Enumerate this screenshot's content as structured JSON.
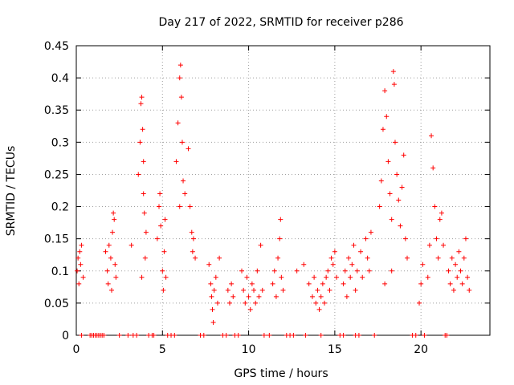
{
  "chart_data": {
    "type": "scatter",
    "title": "Day 217 of 2022, SRMTID for receiver p286",
    "xlabel": "GPS time / hours",
    "ylabel": "SRMTID / TECUs",
    "xlim": [
      0,
      24
    ],
    "ylim": [
      0,
      0.45
    ],
    "xticks": [
      0,
      5,
      10,
      15,
      20
    ],
    "xtick_labels": [
      "0",
      "5",
      "10",
      "15",
      "20"
    ],
    "yticks": [
      0,
      0.05,
      0.1,
      0.15,
      0.2,
      0.25,
      0.3,
      0.35,
      0.4,
      0.45
    ],
    "ytick_labels": [
      "0",
      "0.05",
      "0.1",
      "0.15",
      "0.2",
      "0.25",
      "0.3",
      "0.35",
      "0.4",
      "0.45"
    ],
    "grid": true,
    "marker": "+",
    "color": "#ff0000",
    "series": [
      {
        "name": "SRMTID",
        "points": [
          [
            0.05,
            0.1
          ],
          [
            0.1,
            0.12
          ],
          [
            0.15,
            0.08
          ],
          [
            0.2,
            0.13
          ],
          [
            0.25,
            0.11
          ],
          [
            0.3,
            0.14
          ],
          [
            0.4,
            0.09
          ],
          [
            1.7,
            0.13
          ],
          [
            1.8,
            0.1
          ],
          [
            1.85,
            0.08
          ],
          [
            1.9,
            0.14
          ],
          [
            2.0,
            0.12
          ],
          [
            2.05,
            0.07
          ],
          [
            2.1,
            0.16
          ],
          [
            2.15,
            0.19
          ],
          [
            2.2,
            0.18
          ],
          [
            2.25,
            0.11
          ],
          [
            2.3,
            0.09
          ],
          [
            3.2,
            0.14
          ],
          [
            3.6,
            0.25
          ],
          [
            3.7,
            0.3
          ],
          [
            3.75,
            0.36
          ],
          [
            3.8,
            0.37
          ],
          [
            3.85,
            0.32
          ],
          [
            3.9,
            0.22
          ],
          [
            3.95,
            0.19
          ],
          [
            4.0,
            0.12
          ],
          [
            4.05,
            0.16
          ],
          [
            3.8,
            0.09
          ],
          [
            3.9,
            0.27
          ],
          [
            4.7,
            0.15
          ],
          [
            4.8,
            0.2
          ],
          [
            4.85,
            0.22
          ],
          [
            4.9,
            0.17
          ],
          [
            5.0,
            0.1
          ],
          [
            5.05,
            0.07
          ],
          [
            5.1,
            0.13
          ],
          [
            5.15,
            0.18
          ],
          [
            5.2,
            0.09
          ],
          [
            5.8,
            0.27
          ],
          [
            5.9,
            0.33
          ],
          [
            6.0,
            0.4
          ],
          [
            6.05,
            0.42
          ],
          [
            6.1,
            0.37
          ],
          [
            6.15,
            0.3
          ],
          [
            6.0,
            0.2
          ],
          [
            6.2,
            0.24
          ],
          [
            6.3,
            0.22
          ],
          [
            6.5,
            0.29
          ],
          [
            6.6,
            0.2
          ],
          [
            6.7,
            0.16
          ],
          [
            6.75,
            0.13
          ],
          [
            6.8,
            0.15
          ],
          [
            6.9,
            0.12
          ],
          [
            7.7,
            0.11
          ],
          [
            7.8,
            0.08
          ],
          [
            7.85,
            0.06
          ],
          [
            7.9,
            0.04
          ],
          [
            7.95,
            0.02
          ],
          [
            8.0,
            0.07
          ],
          [
            8.1,
            0.09
          ],
          [
            8.2,
            0.05
          ],
          [
            8.3,
            0.12
          ],
          [
            8.8,
            0.07
          ],
          [
            8.9,
            0.05
          ],
          [
            9.0,
            0.08
          ],
          [
            9.1,
            0.06
          ],
          [
            9.6,
            0.1
          ],
          [
            9.7,
            0.07
          ],
          [
            9.8,
            0.05
          ],
          [
            9.9,
            0.09
          ],
          [
            10.0,
            0.06
          ],
          [
            10.1,
            0.04
          ],
          [
            10.2,
            0.08
          ],
          [
            10.3,
            0.07
          ],
          [
            10.4,
            0.05
          ],
          [
            10.5,
            0.1
          ],
          [
            10.6,
            0.06
          ],
          [
            10.7,
            0.14
          ],
          [
            10.8,
            0.07
          ],
          [
            11.4,
            0.08
          ],
          [
            11.5,
            0.1
          ],
          [
            11.6,
            0.06
          ],
          [
            11.7,
            0.12
          ],
          [
            11.8,
            0.15
          ],
          [
            11.85,
            0.18
          ],
          [
            11.9,
            0.09
          ],
          [
            12.0,
            0.07
          ],
          [
            12.8,
            0.1
          ],
          [
            13.2,
            0.11
          ],
          [
            13.5,
            0.08
          ],
          [
            13.7,
            0.06
          ],
          [
            13.8,
            0.09
          ],
          [
            13.9,
            0.05
          ],
          [
            14.0,
            0.07
          ],
          [
            14.1,
            0.04
          ],
          [
            14.2,
            0.06
          ],
          [
            14.3,
            0.08
          ],
          [
            14.4,
            0.05
          ],
          [
            14.5,
            0.09
          ],
          [
            14.6,
            0.1
          ],
          [
            14.7,
            0.07
          ],
          [
            14.8,
            0.12
          ],
          [
            14.9,
            0.11
          ],
          [
            15.0,
            0.13
          ],
          [
            15.1,
            0.09
          ],
          [
            15.5,
            0.08
          ],
          [
            15.6,
            0.1
          ],
          [
            15.7,
            0.06
          ],
          [
            15.8,
            0.12
          ],
          [
            15.9,
            0.09
          ],
          [
            16.0,
            0.11
          ],
          [
            16.1,
            0.14
          ],
          [
            16.2,
            0.07
          ],
          [
            16.3,
            0.1
          ],
          [
            16.5,
            0.13
          ],
          [
            16.6,
            0.09
          ],
          [
            16.8,
            0.15
          ],
          [
            16.9,
            0.12
          ],
          [
            17.0,
            0.1
          ],
          [
            17.1,
            0.16
          ],
          [
            17.6,
            0.2
          ],
          [
            17.7,
            0.24
          ],
          [
            17.8,
            0.32
          ],
          [
            17.9,
            0.38
          ],
          [
            18.0,
            0.34
          ],
          [
            18.1,
            0.27
          ],
          [
            18.2,
            0.22
          ],
          [
            18.3,
            0.18
          ],
          [
            18.4,
            0.41
          ],
          [
            18.45,
            0.39
          ],
          [
            18.5,
            0.3
          ],
          [
            18.6,
            0.25
          ],
          [
            18.7,
            0.21
          ],
          [
            18.8,
            0.17
          ],
          [
            18.9,
            0.23
          ],
          [
            19.0,
            0.28
          ],
          [
            19.1,
            0.15
          ],
          [
            19.2,
            0.12
          ],
          [
            17.9,
            0.08
          ],
          [
            18.3,
            0.1
          ],
          [
            19.9,
            0.05
          ],
          [
            20.0,
            0.08
          ],
          [
            20.1,
            0.11
          ],
          [
            20.4,
            0.09
          ],
          [
            20.5,
            0.14
          ],
          [
            20.6,
            0.31
          ],
          [
            20.7,
            0.26
          ],
          [
            20.8,
            0.2
          ],
          [
            20.9,
            0.15
          ],
          [
            21.0,
            0.12
          ],
          [
            21.1,
            0.18
          ],
          [
            21.2,
            0.19
          ],
          [
            21.3,
            0.14
          ],
          [
            21.6,
            0.1
          ],
          [
            21.7,
            0.08
          ],
          [
            21.8,
            0.12
          ],
          [
            21.9,
            0.07
          ],
          [
            22.0,
            0.11
          ],
          [
            22.1,
            0.09
          ],
          [
            22.2,
            0.13
          ],
          [
            22.3,
            0.1
          ],
          [
            22.4,
            0.08
          ],
          [
            22.5,
            0.12
          ],
          [
            22.6,
            0.15
          ],
          [
            22.7,
            0.09
          ],
          [
            22.8,
            0.07
          ]
        ]
      }
    ],
    "zero_points_x": [
      0.3,
      0.8,
      0.9,
      1.0,
      1.1,
      1.2,
      1.3,
      1.4,
      1.5,
      1.6,
      2.5,
      3.0,
      3.3,
      3.5,
      4.2,
      4.4,
      4.5,
      5.3,
      5.5,
      5.7,
      7.2,
      7.4,
      8.5,
      8.7,
      9.2,
      9.4,
      10.9,
      11.2,
      12.2,
      12.4,
      12.6,
      13.3,
      14.2,
      15.3,
      15.5,
      16.2,
      16.4,
      17.3,
      19.5,
      19.7,
      20.2,
      21.4,
      21.5
    ],
    "x_range_note": "0 to 24"
  }
}
